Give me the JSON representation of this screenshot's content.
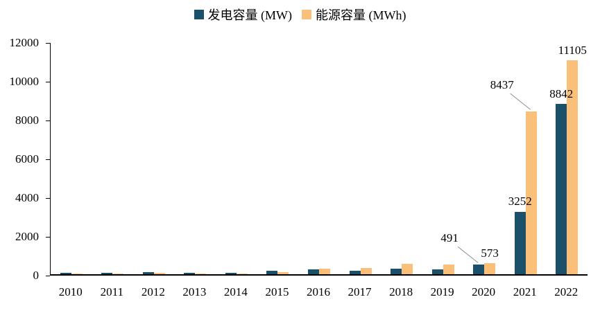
{
  "chart_data": {
    "type": "bar",
    "title": "",
    "xlabel": "",
    "ylabel": "",
    "categories": [
      "2010",
      "2011",
      "2012",
      "2013",
      "2014",
      "2015",
      "2016",
      "2017",
      "2018",
      "2019",
      "2020",
      "2021",
      "2022"
    ],
    "series": [
      {
        "name": "发电容量 (MW)",
        "color": "#1B506B",
        "values": [
          70,
          70,
          110,
          70,
          60,
          170,
          250,
          190,
          280,
          240,
          491,
          3252,
          8842
        ]
      },
      {
        "name": "能源容量 (MWh)",
        "color": "#FAC079",
        "values": [
          30,
          40,
          70,
          50,
          50,
          110,
          290,
          310,
          540,
          500,
          573,
          8437,
          11105
        ]
      }
    ],
    "ylim": [
      0,
      12000
    ],
    "ytick_interval": 2000,
    "grid": false,
    "legend_position": "top",
    "axis_color": "#000000",
    "callout_line_color": "#8c8c8c",
    "annotations": [
      {
        "series": 0,
        "category": "2020",
        "text": "491",
        "placement": "upleft"
      },
      {
        "series": 1,
        "category": "2020",
        "text": "573",
        "placement": "above"
      },
      {
        "series": 0,
        "category": "2021",
        "text": "3252",
        "placement": "above"
      },
      {
        "series": 1,
        "category": "2021",
        "text": "8437",
        "placement": "upleft"
      },
      {
        "series": 0,
        "category": "2022",
        "text": "8842",
        "placement": "above"
      },
      {
        "series": 1,
        "category": "2022",
        "text": "11105",
        "placement": "above"
      }
    ]
  }
}
